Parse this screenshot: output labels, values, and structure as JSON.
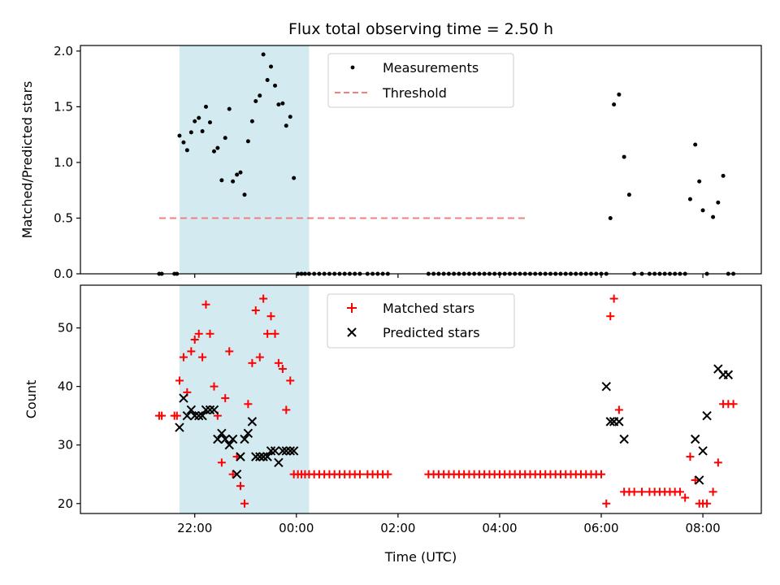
{
  "chart_data": [
    {
      "type": "scatter",
      "title": "Flux total observing time = 2.50 h",
      "xlabel": "",
      "ylabel": "Matched/Predicted stars",
      "x_unit": "hours UTC (continuous across midnight)",
      "ylim": [
        0,
        2.05
      ],
      "yticks": [
        0.0,
        0.5,
        1.0,
        1.5,
        2.0
      ],
      "ytick_labels": [
        "0.0",
        "0.5",
        "1.0",
        "1.5",
        "2.0"
      ],
      "shaded_interval": {
        "x": [
          21.7,
          24.25
        ],
        "color": "#d3ebf0"
      },
      "legend": {
        "placement": "upper-center",
        "entries": [
          "Measurements",
          "Threshold"
        ]
      },
      "threshold": {
        "name": "Threshold",
        "y": 0.5,
        "x": [
          21.3,
          28.55
        ],
        "color": "#f08080"
      },
      "series": [
        {
          "name": "Measurements",
          "color": "#000000",
          "x": [
            21.3,
            21.35,
            21.6,
            21.65,
            21.7,
            21.78,
            21.85,
            21.93,
            22.0,
            22.08,
            22.15,
            22.22,
            22.3,
            22.38,
            22.45,
            22.53,
            22.6,
            22.68,
            22.75,
            22.83,
            22.9,
            22.98,
            23.05,
            23.13,
            23.2,
            23.28,
            23.35,
            23.43,
            23.5,
            23.58,
            23.65,
            23.73,
            23.8,
            23.88,
            23.95,
            24.03,
            24.1,
            24.17,
            24.25,
            24.35,
            24.45,
            24.55,
            24.65,
            24.75,
            24.85,
            24.95,
            25.05,
            25.15,
            25.25,
            25.4,
            25.5,
            25.6,
            25.7,
            25.8,
            26.6,
            26.7,
            26.8,
            26.9,
            27.0,
            27.1,
            27.2,
            27.3,
            27.4,
            27.5,
            27.6,
            27.7,
            27.8,
            27.9,
            28.0,
            28.1,
            28.2,
            28.3,
            28.4,
            28.5,
            28.6,
            28.7,
            28.8,
            28.9,
            29.0,
            29.1,
            29.2,
            29.3,
            29.4,
            29.5,
            29.6,
            29.7,
            29.8,
            29.9,
            30.0,
            30.1,
            30.18,
            30.25,
            30.35,
            30.45,
            30.55,
            30.65,
            30.8,
            30.95,
            31.05,
            31.15,
            31.25,
            31.35,
            31.45,
            31.55,
            31.65,
            31.75,
            31.85,
            31.93,
            32.0,
            32.08,
            32.2,
            32.3,
            32.4,
            32.5,
            32.6
          ],
          "y": [
            0,
            0,
            0,
            0,
            1.24,
            1.18,
            1.11,
            1.27,
            1.37,
            1.4,
            1.28,
            1.5,
            1.36,
            1.1,
            1.13,
            0.84,
            1.22,
            1.48,
            0.83,
            0.89,
            0.91,
            0.71,
            1.19,
            1.37,
            1.55,
            1.6,
            1.97,
            1.74,
            1.86,
            1.69,
            1.52,
            1.53,
            1.33,
            1.41,
            0.86,
            0,
            0,
            0,
            0,
            0,
            0,
            0,
            0,
            0,
            0,
            0,
            0,
            0,
            0,
            0,
            0,
            0,
            0,
            0,
            0,
            0,
            0,
            0,
            0,
            0,
            0,
            0,
            0,
            0,
            0,
            0,
            0,
            0,
            0,
            0,
            0,
            0,
            0,
            0,
            0,
            0,
            0,
            0,
            0,
            0,
            0,
            0,
            0,
            0,
            0,
            0,
            0,
            0,
            0,
            0,
            0.5,
            1.52,
            1.61,
            1.05,
            0.71,
            0,
            0,
            0,
            0,
            0,
            0,
            0,
            0,
            0,
            0,
            0.67,
            1.16,
            0.83,
            0.57,
            0,
            0.51,
            0.64,
            0.88,
            0,
            0
          ]
        }
      ]
    },
    {
      "type": "scatter",
      "xlabel": "Time (UTC)",
      "ylabel": "Count",
      "ylim": [
        18.3,
        57.3
      ],
      "yticks": [
        20,
        30,
        40,
        50
      ],
      "ytick_labels": [
        "20",
        "30",
        "40",
        "50"
      ],
      "xticks": [
        22,
        24,
        26,
        28,
        30,
        32
      ],
      "xtick_labels": [
        "22:00",
        "00:00",
        "02:00",
        "04:00",
        "06:00",
        "08:00"
      ],
      "xlim": [
        19.75,
        33.15
      ],
      "shaded_interval": {
        "x": [
          21.7,
          24.25
        ],
        "color": "#d3ebf0"
      },
      "legend": {
        "placement": "upper-center",
        "entries": [
          "Matched stars",
          "Predicted stars"
        ]
      },
      "series": [
        {
          "name": "Matched stars",
          "marker": "plus",
          "color": "#ff0000",
          "x": [
            21.3,
            21.35,
            21.6,
            21.65,
            21.7,
            21.78,
            21.85,
            21.93,
            22.0,
            22.08,
            22.15,
            22.22,
            22.3,
            22.38,
            22.45,
            22.53,
            22.6,
            22.68,
            22.75,
            22.83,
            22.9,
            22.98,
            23.05,
            23.13,
            23.2,
            23.28,
            23.35,
            23.43,
            23.5,
            23.58,
            23.65,
            23.73,
            23.8,
            23.88,
            23.95,
            24.03,
            24.1,
            24.17,
            24.25,
            24.35,
            24.45,
            24.55,
            24.65,
            24.75,
            24.85,
            24.95,
            25.05,
            25.15,
            25.25,
            25.4,
            25.5,
            25.6,
            25.7,
            25.8,
            26.6,
            26.7,
            26.8,
            26.9,
            27.0,
            27.1,
            27.2,
            27.3,
            27.4,
            27.5,
            27.6,
            27.7,
            27.8,
            27.9,
            28.0,
            28.1,
            28.2,
            28.3,
            28.4,
            28.5,
            28.6,
            28.7,
            28.8,
            28.9,
            29.0,
            29.1,
            29.2,
            29.3,
            29.4,
            29.5,
            29.6,
            29.7,
            29.8,
            29.9,
            30.0,
            30.1,
            30.18,
            30.25,
            30.35,
            30.45,
            30.55,
            30.65,
            30.8,
            30.95,
            31.05,
            31.15,
            31.25,
            31.35,
            31.45,
            31.55,
            31.65,
            31.75,
            31.85,
            31.93,
            32.0,
            32.08,
            32.2,
            32.3,
            32.4,
            32.5,
            32.6
          ],
          "y": [
            35,
            35,
            35,
            35,
            41,
            45,
            39,
            46,
            48,
            49,
            45,
            54,
            49,
            40,
            35,
            27,
            38,
            46,
            25,
            28,
            23,
            20,
            37,
            44,
            53,
            45,
            55,
            49,
            52,
            49,
            44,
            43,
            36,
            41,
            25,
            25,
            25,
            25,
            25,
            25,
            25,
            25,
            25,
            25,
            25,
            25,
            25,
            25,
            25,
            25,
            25,
            25,
            25,
            25,
            25,
            25,
            25,
            25,
            25,
            25,
            25,
            25,
            25,
            25,
            25,
            25,
            25,
            25,
            25,
            25,
            25,
            25,
            25,
            25,
            25,
            25,
            25,
            25,
            25,
            25,
            25,
            25,
            25,
            25,
            25,
            25,
            25,
            25,
            25,
            20,
            52,
            55,
            36,
            22,
            22,
            22,
            22,
            22,
            22,
            22,
            22,
            22,
            22,
            22,
            21,
            28,
            24,
            20,
            20,
            20,
            22,
            27,
            37,
            37,
            37
          ]
        },
        {
          "name": "Predicted stars",
          "marker": "x",
          "color": "#000000",
          "x": [
            21.7,
            21.78,
            21.85,
            21.93,
            22.0,
            22.08,
            22.15,
            22.22,
            22.3,
            22.38,
            22.45,
            22.53,
            22.6,
            22.68,
            22.75,
            22.83,
            22.9,
            22.98,
            23.05,
            23.13,
            23.2,
            23.28,
            23.35,
            23.43,
            23.5,
            23.58,
            23.65,
            23.73,
            23.8,
            23.88,
            23.95,
            30.1,
            30.18,
            30.25,
            30.35,
            30.45,
            31.85,
            31.93,
            32.0,
            32.08,
            32.3,
            32.4,
            32.5
          ],
          "y": [
            33,
            38,
            35,
            36,
            35,
            35,
            35,
            36,
            36,
            36,
            31,
            32,
            31,
            30,
            31,
            25,
            28,
            31,
            32,
            34,
            28,
            28,
            28,
            28,
            29,
            29,
            27,
            29,
            29,
            29,
            29,
            40,
            34,
            34,
            34,
            31,
            31,
            24,
            29,
            35,
            43,
            42,
            42
          ]
        }
      ]
    }
  ]
}
